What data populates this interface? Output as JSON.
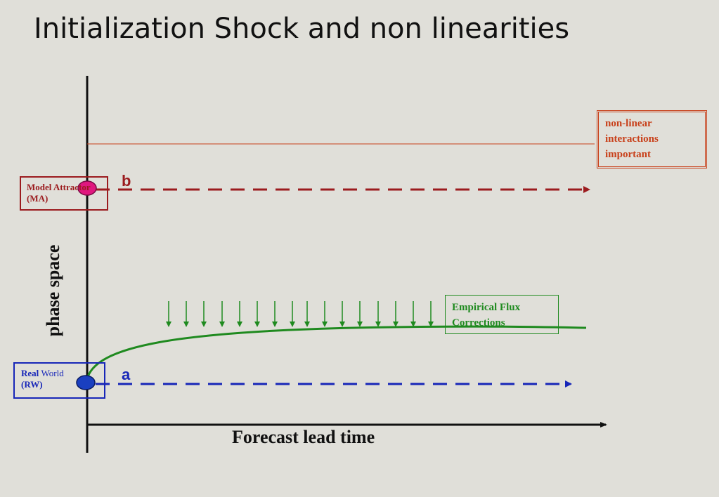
{
  "title": "Initialization Shock and non linearities",
  "model_attractor": {
    "line1": "Model Attractor",
    "line2": "(MA)"
  },
  "real_world": {
    "word1": "Real",
    "word2": "World",
    "line2": "(RW)"
  },
  "nonlinear": {
    "line1": "non-linear",
    "line2": "interactions",
    "line3": "important"
  },
  "flux": {
    "line1": "Empirical Flux",
    "line2": "Corrections"
  },
  "letters": {
    "b": "b",
    "a": "a"
  },
  "axes": {
    "x_label": "Forecast lead time",
    "y_label": "phase space"
  },
  "colors": {
    "background": "#e0dfd9",
    "model_attractor": "#9b1b1e",
    "real_world": "#1726b8",
    "nonlinear": "#c8401a",
    "flux": "#1f8a1f",
    "ma_dot": "#e0177f",
    "rw_dot": "#1a3fc0"
  }
}
